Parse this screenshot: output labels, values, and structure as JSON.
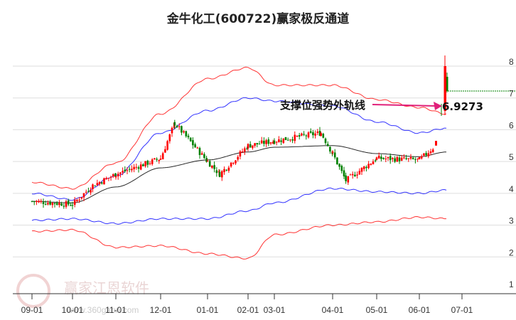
{
  "title": "金牛化工(600722)赢家极反通道",
  "watermark": {
    "name": "赢家江恩软件",
    "url": "www.360gann.com",
    "seal": [
      "江",
      "赢",
      "恩",
      "家"
    ]
  },
  "annotation": {
    "label": "支撑位强势外轨线",
    "value": "6.9273"
  },
  "colors": {
    "up": "#ff0000",
    "down": "#008000",
    "upper_band": "#ff0000",
    "mid_band": "#0000ff",
    "ma": "#000000",
    "arrow": "#e0207a",
    "grid": "#dddddd"
  },
  "chart_data": {
    "type": "line",
    "title": "金牛化工(600722)赢家极反通道",
    "xlabel": "",
    "ylabel": "",
    "ylim": [
      1,
      8.5
    ],
    "y_ticks": [
      1,
      2,
      3,
      4,
      5,
      6,
      7,
      8
    ],
    "x_ticks": [
      "09-01",
      "10-01",
      "11-01",
      "12-01",
      "01-01",
      "02-01",
      "03-01",
      "04-01",
      "05-01",
      "06-01",
      "07-01"
    ],
    "grid": true,
    "legend": null,
    "annotations": [
      {
        "text": "支撑位强势外轨线",
        "value": 6.9273,
        "x": "06-20"
      }
    ],
    "series": [
      {
        "name": "outer upper band (red)",
        "x": [
          "09-01",
          "10-01",
          "11-01",
          "12-01",
          "01-01",
          "02-01",
          "03-01",
          "04-01",
          "05-01",
          "06-01",
          "06-20"
        ],
        "values": [
          4.35,
          4.15,
          4.95,
          6.5,
          7.6,
          7.95,
          7.4,
          7.4,
          6.95,
          6.7,
          6.5
        ]
      },
      {
        "name": "inner upper band (blue)",
        "x": [
          "09-01",
          "10-01",
          "11-01",
          "12-01",
          "01-01",
          "02-01",
          "03-01",
          "04-01",
          "05-01",
          "06-01",
          "06-20"
        ],
        "values": [
          4.0,
          3.8,
          4.55,
          5.9,
          6.6,
          7.0,
          6.9,
          6.75,
          6.25,
          5.9,
          6.05
        ]
      },
      {
        "name": "moving average (black)",
        "x": [
          "09-01",
          "10-01",
          "11-01",
          "12-01",
          "01-01",
          "02-01",
          "03-01",
          "04-01",
          "05-01",
          "06-01",
          "06-20"
        ],
        "values": [
          3.75,
          3.7,
          4.2,
          4.8,
          5.05,
          5.3,
          5.45,
          5.5,
          5.25,
          5.15,
          5.3
        ]
      },
      {
        "name": "inner lower band (blue)",
        "x": [
          "09-01",
          "10-01",
          "11-01",
          "12-01",
          "01-01",
          "02-01",
          "03-01",
          "04-01",
          "05-01",
          "06-01",
          "06-20"
        ],
        "values": [
          3.15,
          3.2,
          3.05,
          3.2,
          3.2,
          3.45,
          3.7,
          4.15,
          4.05,
          4.0,
          4.1
        ]
      },
      {
        "name": "outer lower band (red)",
        "x": [
          "09-01",
          "10-01",
          "11-01",
          "12-01",
          "01-01",
          "02-01",
          "03-01",
          "04-01",
          "05-01",
          "06-01",
          "06-20"
        ],
        "values": [
          2.8,
          2.85,
          2.3,
          2.35,
          2.1,
          1.95,
          2.7,
          3.0,
          3.1,
          3.25,
          3.2
        ]
      },
      {
        "name": "close price (candles)",
        "x": [
          "09-01",
          "10-01",
          "10-15",
          "11-01",
          "12-01",
          "12-10",
          "01-01",
          "01-10",
          "02-01",
          "03-01",
          "03-25",
          "04-01",
          "04-10",
          "05-01",
          "06-01",
          "06-15",
          "06-20"
        ],
        "values": [
          3.75,
          3.65,
          4.25,
          4.6,
          5.1,
          6.2,
          5.0,
          4.6,
          5.5,
          5.65,
          5.9,
          5.25,
          4.4,
          5.1,
          5.05,
          5.6,
          7.3
        ]
      }
    ]
  },
  "axis": {
    "y_labels": [
      "8",
      "7",
      "6",
      "5",
      "4",
      "3",
      "2",
      "1"
    ],
    "x_labels": [
      "09-01",
      "10-01",
      "11-01",
      "12-01",
      "01-01",
      "02-01",
      "03-01",
      "04-01",
      "05-01",
      "06-01",
      "07-01"
    ]
  }
}
